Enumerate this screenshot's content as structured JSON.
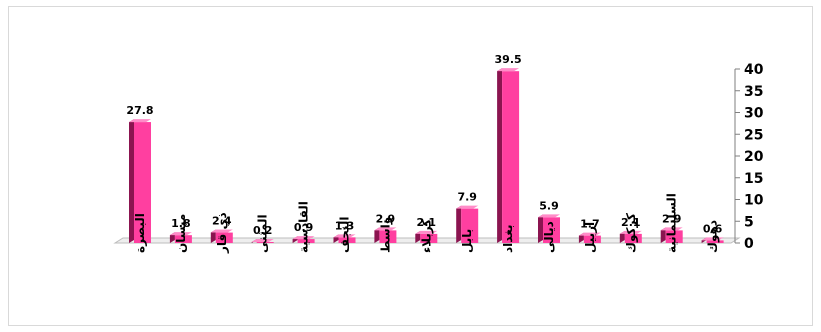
{
  "chart_data": {
    "type": "bar",
    "categories": [
      "البصرة",
      "ميسان",
      "ذي قار",
      "المثنى",
      "القادسية",
      "النجف",
      "واسط",
      "كربلاء",
      "بابل",
      "بغداد",
      "ديالى",
      "اربيل",
      "كركوك",
      "السليمانية",
      "دهوك"
    ],
    "values": [
      27.8,
      1.8,
      2.4,
      0.2,
      0.9,
      1.3,
      2.9,
      2.1,
      7.9,
      39.5,
      5.9,
      1.7,
      2.1,
      2.9,
      0.6
    ],
    "value_labels": [
      "27.8",
      "1.8",
      "2.4",
      "0.2",
      "0.9",
      "1.3",
      "2.9",
      "2.1",
      "7.9",
      "39.5",
      "5.9",
      "1.7",
      "2.1",
      "2.9",
      "0.6"
    ],
    "yticks": [
      "0",
      "5",
      "10",
      "15",
      "20",
      "25",
      "30",
      "35",
      "40"
    ],
    "ylim": [
      0,
      40
    ],
    "y_axis_position": "right",
    "grid": false,
    "legend": "none",
    "bar_color": "#ff3fa0",
    "bar_side_color": "#8b1450",
    "bar_top_color": "#ff8cc8"
  }
}
